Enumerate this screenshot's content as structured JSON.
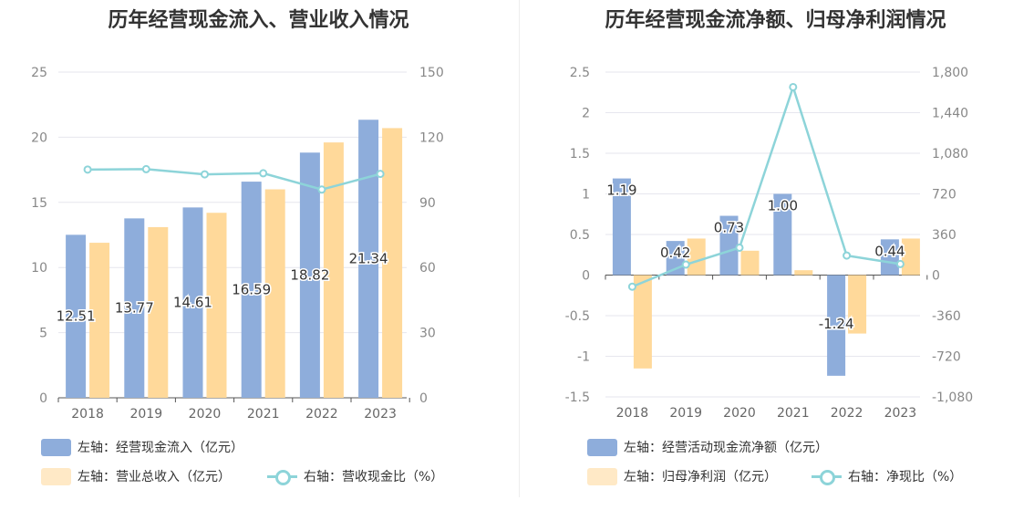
{
  "chart_data": [
    {
      "type": "bar",
      "title": "历年经营现金流入、营业收入情况",
      "categories": [
        "2018",
        "2019",
        "2020",
        "2021",
        "2022",
        "2023"
      ],
      "left_axis": {
        "ylim": [
          0,
          25
        ],
        "ticks": [
          "0",
          "5",
          "10",
          "15",
          "20",
          "25"
        ]
      },
      "right_axis": {
        "ylim": [
          0,
          150
        ],
        "ticks": [
          "0",
          "30",
          "60",
          "90",
          "120",
          "150"
        ]
      },
      "series": [
        {
          "name": "左轴：经营现金流入（亿元）",
          "kind": "bar",
          "axis": "left",
          "color": "#8eaddb",
          "values": [
            12.51,
            13.77,
            14.61,
            16.59,
            18.82,
            21.34
          ],
          "labels": [
            "12.51",
            "13.77",
            "14.61",
            "16.59",
            "18.82",
            "21.34"
          ]
        },
        {
          "name": "左轴：营业总收入（亿元）",
          "kind": "bar",
          "axis": "left",
          "color": "#ffd99a",
          "values": [
            11.9,
            13.1,
            14.2,
            16.0,
            19.6,
            20.7
          ]
        },
        {
          "name": "右轴：营收现金比（%）",
          "kind": "line",
          "axis": "right",
          "color": "#8dd4d9",
          "values": [
            105.1,
            105.3,
            102.9,
            103.4,
            95.9,
            103.1
          ]
        }
      ],
      "grid": true,
      "legend": "bottom"
    },
    {
      "type": "bar",
      "title": "历年经营现金流净额、归母净利润情况",
      "categories": [
        "2018",
        "2019",
        "2020",
        "2021",
        "2022",
        "2023"
      ],
      "left_axis": {
        "ylim": [
          -1.5,
          2.5
        ],
        "ticks": [
          "-1.5",
          "-1",
          "-0.5",
          "0",
          "0.5",
          "1",
          "1.5",
          "2",
          "2.5"
        ]
      },
      "right_axis": {
        "ylim": [
          -1080,
          1800
        ],
        "ticks": [
          "-1,080",
          "-720",
          "-360",
          "0",
          "360",
          "720",
          "1,080",
          "1,440",
          "1,800"
        ]
      },
      "series": [
        {
          "name": "左轴：经营活动现金流净额（亿元）",
          "kind": "bar",
          "axis": "left",
          "color": "#8eaddb",
          "values": [
            1.19,
            0.42,
            0.73,
            1.0,
            -1.24,
            0.44
          ],
          "labels": [
            "1.19",
            "0.42",
            "0.73",
            "1.00",
            "-1.24",
            "0.44"
          ]
        },
        {
          "name": "左轴：归母净利润（亿元）",
          "kind": "bar",
          "axis": "left",
          "color": "#ffd99a",
          "values": [
            -1.15,
            0.45,
            0.3,
            0.06,
            -0.72,
            0.45
          ]
        },
        {
          "name": "右轴：净现比（%）",
          "kind": "line",
          "axis": "right",
          "color": "#8dd4d9",
          "values": [
            -103,
            93,
            243,
            1667,
            173,
            98
          ]
        }
      ],
      "grid": true,
      "legend": "bottom"
    }
  ]
}
